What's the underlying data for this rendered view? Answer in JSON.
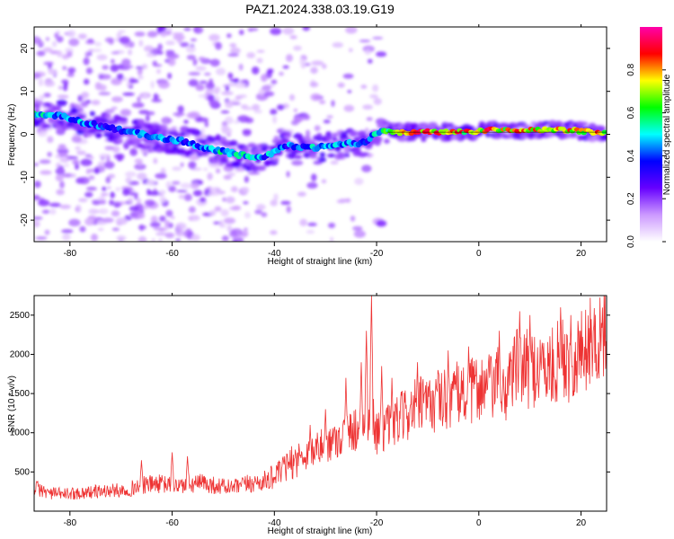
{
  "title": "PAZ1.2024.338.03.19.G19",
  "chart_data": [
    {
      "type": "heatmap",
      "title": "",
      "xlabel": "Height of straight line (km)",
      "ylabel": "Frequency (Hz)",
      "xlim": [
        -87,
        25
      ],
      "ylim": [
        -25,
        25
      ],
      "x_ticks": [
        -80,
        -60,
        -40,
        -20,
        0,
        20
      ],
      "y_ticks": [
        -20,
        -10,
        0,
        10,
        20
      ],
      "colorbar": {
        "label": "Normalized spectral amplitude",
        "range": [
          0,
          1
        ],
        "ticks": [
          0.0,
          0.2,
          0.4,
          0.6,
          0.8
        ],
        "colors": [
          "#ffffff",
          "#cc99ff",
          "#6600ff",
          "#0000ff",
          "#00ffff",
          "#00ff00",
          "#ffff00",
          "#ff0000",
          "#ff00aa"
        ]
      },
      "ridge": {
        "x": [
          -86,
          -82,
          -78,
          -74,
          -70,
          -66,
          -62,
          -58,
          -54,
          -50,
          -46,
          -42,
          -38,
          -34,
          -30,
          -26,
          -22,
          -20,
          -18,
          -14,
          -10,
          -6,
          -2,
          2,
          6,
          10,
          14,
          18,
          22,
          25
        ],
        "frequency": [
          4.5,
          4.5,
          3,
          2,
          1,
          0,
          -1,
          -1.5,
          -3,
          -4,
          -5,
          -5.5,
          -2.5,
          -3,
          -3,
          -2,
          -2,
          0.5,
          0.5,
          0.5,
          0.5,
          0.5,
          0.5,
          1,
          1,
          1,
          1,
          1,
          0.5,
          0.5
        ],
        "amplitude": [
          0.5,
          0.4,
          0.45,
          0.4,
          0.35,
          0.45,
          0.5,
          0.4,
          0.45,
          0.5,
          0.5,
          0.45,
          0.4,
          0.45,
          0.5,
          0.45,
          0.35,
          0.5,
          0.6,
          0.7,
          0.85,
          0.8,
          0.75,
          0.8,
          0.75,
          0.8,
          0.75,
          0.75,
          0.75,
          0.8
        ]
      }
    },
    {
      "type": "line",
      "title": "",
      "xlabel": "Height of straight line (km)",
      "ylabel": "SNR (10 * v/v)",
      "xlim": [
        -87,
        25
      ],
      "ylim": [
        0,
        2750
      ],
      "x_ticks": [
        -80,
        -60,
        -40,
        -20,
        0,
        20
      ],
      "y_ticks": [
        500,
        1000,
        1500,
        2000,
        2500
      ],
      "series": [
        {
          "color": "#ee3333",
          "x": [
            -87,
            -84,
            -81,
            -78,
            -75,
            -72,
            -69,
            -66,
            -63,
            -60,
            -57,
            -54,
            -51,
            -48,
            -45,
            -42,
            -39,
            -36,
            -33,
            -30,
            -27,
            -24,
            -22,
            -21,
            -20,
            -18,
            -16,
            -14,
            -12,
            -10,
            -8,
            -6,
            -4,
            -2,
            0,
            2,
            4,
            5,
            6,
            8,
            10,
            12,
            14,
            16,
            18,
            20,
            22,
            25
          ],
          "y": [
            300,
            230,
            220,
            230,
            250,
            260,
            270,
            330,
            350,
            330,
            330,
            360,
            320,
            300,
            350,
            380,
            480,
            650,
            750,
            850,
            950,
            1050,
            1200,
            1300,
            1000,
            1050,
            1150,
            1250,
            1350,
            1350,
            1400,
            1450,
            1500,
            1500,
            1600,
            1550,
            1650,
            1400,
            1800,
            1850,
            1800,
            1850,
            1800,
            1950,
            1900,
            2050,
            2150,
            2250
          ],
          "spikes": [
            [
              -66,
              650
            ],
            [
              -60,
              750
            ],
            [
              -57,
              700
            ],
            [
              -38,
              700
            ],
            [
              -33,
              1100
            ],
            [
              -30,
              1300
            ],
            [
              -26,
              1700
            ],
            [
              -23,
              1900
            ],
            [
              -22,
              2300
            ],
            [
              -21,
              2750
            ],
            [
              -19,
              1850
            ],
            [
              -17,
              1700
            ],
            [
              -12,
              1900
            ],
            [
              -8,
              1800
            ],
            [
              -6,
              2050
            ],
            [
              -2,
              2100
            ],
            [
              2,
              2000
            ],
            [
              4,
              2300
            ],
            [
              5,
              1100
            ],
            [
              6,
              1400
            ],
            [
              8,
              2550
            ],
            [
              10,
              2500
            ],
            [
              12,
              2100
            ],
            [
              16,
              2600
            ],
            [
              18,
              2500
            ],
            [
              22,
              2450
            ],
            [
              24,
              2400
            ]
          ]
        }
      ]
    }
  ]
}
